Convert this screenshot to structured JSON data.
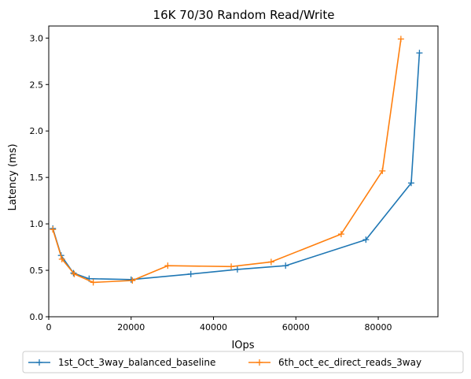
{
  "chart_data": {
    "type": "line",
    "title": "16K 70/30  Random Read/Write",
    "xlabel": "IOps",
    "ylabel": "Latency (ms)",
    "xlim": [
      0,
      94500
    ],
    "ylim": [
      0,
      3.13
    ],
    "xticks": [
      0,
      20000,
      40000,
      60000,
      80000
    ],
    "yticks": [
      0.0,
      0.5,
      1.0,
      1.5,
      2.0,
      2.5,
      3.0
    ],
    "xtick_labels": [
      "0",
      "20000",
      "40000",
      "60000",
      "80000"
    ],
    "ytick_labels": [
      "0.0",
      "0.5",
      "1.0",
      "1.5",
      "2.0",
      "2.5",
      "3.0"
    ],
    "grid": false,
    "legend_position": "below-center",
    "series": [
      {
        "name": "1st_Oct_3way_balanced_baseline",
        "color": "#1f77b4",
        "marker": "plus",
        "x": [
          1000,
          3000,
          6000,
          9800,
          20000,
          34500,
          45800,
          57500,
          77000,
          88000,
          90000
        ],
        "y": [
          0.95,
          0.66,
          0.47,
          0.41,
          0.4,
          0.46,
          0.51,
          0.55,
          0.83,
          1.44,
          2.84
        ]
      },
      {
        "name": "6th_oct_ec_direct_reads_3way",
        "color": "#ff7f0e",
        "marker": "plus",
        "x": [
          1000,
          3200,
          6200,
          10800,
          20300,
          28900,
          44300,
          54000,
          71000,
          81000,
          85500
        ],
        "y": [
          0.94,
          0.62,
          0.46,
          0.37,
          0.39,
          0.55,
          0.54,
          0.59,
          0.89,
          1.57,
          2.99
        ]
      }
    ]
  }
}
